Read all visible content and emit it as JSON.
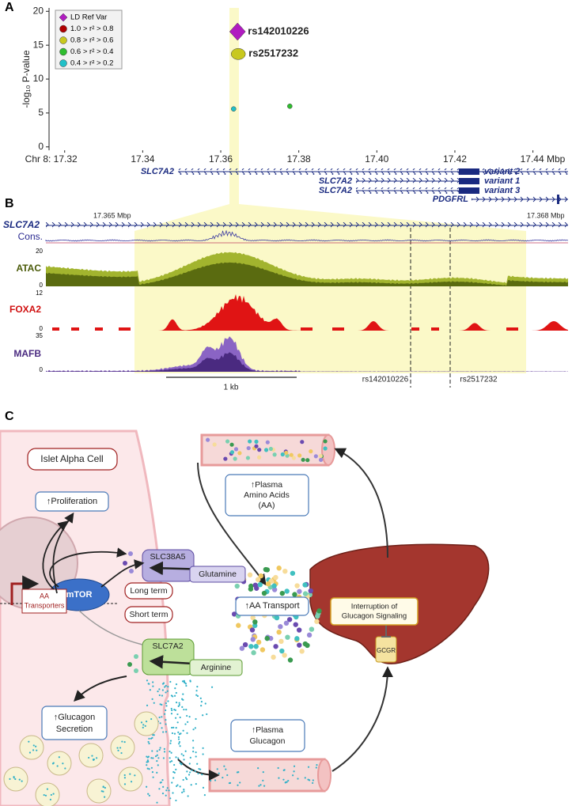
{
  "panel_labels": [
    "A",
    "B",
    "C"
  ],
  "chart_data": {
    "type": "scatter",
    "ylabel": "-log₁₀ P-value",
    "xlim": [
      17.316,
      17.449
    ],
    "ylim": [
      -0.5,
      20.5
    ],
    "xticks": [
      {
        "value": 17.32,
        "label": "Chr 8: 17.32"
      },
      17.34,
      17.36,
      17.38,
      {
        "value": 17.4,
        "label": "17.40"
      },
      17.42,
      {
        "value": 17.44,
        "label": "17.44 Mbp"
      }
    ],
    "yticks": [
      0,
      5,
      10,
      15,
      20
    ],
    "legend": "upper left",
    "series": [
      {
        "name": "LD Ref Var",
        "color": "#b01cc0",
        "marker": "diamond",
        "x": [
          17.3643
        ],
        "values": [
          17
        ],
        "point_labels": [
          "rs142010226"
        ]
      },
      {
        "name": "1.0 > r² > 0.8",
        "color": "#b00000",
        "marker": "circle",
        "x": [],
        "values": []
      },
      {
        "name": "0.8 > r² > 0.6",
        "color": "#c8c81e",
        "marker": "circle",
        "x": [
          17.3645
        ],
        "values": [
          13.7
        ],
        "point_labels": [
          "rs2517232"
        ]
      },
      {
        "name": "0.6 > r² > 0.4",
        "color": "#2ebd2e",
        "marker": "circle",
        "x": [
          17.3777
        ],
        "values": [
          6
        ]
      },
      {
        "name": "0.4 > r² > 0.2",
        "color": "#20c0c8",
        "marker": "circle",
        "x": [
          17.3633
        ],
        "values": [
          5.6
        ]
      }
    ]
  },
  "genes_a": [
    {
      "name": "SLC7A2",
      "variant": "variant 2"
    },
    {
      "name": "SLC7A2",
      "variant": "variant 1"
    },
    {
      "name": "SLC7A2",
      "variant": "variant 3"
    },
    {
      "name": "PDGFRL"
    }
  ],
  "panel_b": {
    "range_start": "17.365 Mbp",
    "range_end": "17.368 Mbp",
    "gene": "SLC7A2",
    "cons": "Cons.",
    "tracks": [
      {
        "name": "ATAC",
        "max": "20",
        "min": "0"
      },
      {
        "name": "FOXA2",
        "max": "12",
        "min": "0"
      },
      {
        "name": "MAFB",
        "max": "35",
        "min": "0"
      }
    ],
    "scale": "1 kb",
    "snps": [
      "rs142010226",
      "rs2517232"
    ]
  },
  "panel_c": {
    "cell": "Islet Alpha Cell",
    "proliferation": "↑Proliferation",
    "slc38a5": "SLC38A5",
    "glutamine": "Glutamine",
    "aa_transporters": [
      "AA",
      "Transporters"
    ],
    "mtor": "mTOR",
    "long_term": "Long term",
    "short_term": "Short term",
    "slc7a2": "SLC7A2",
    "arginine": "Arginine",
    "glucagon_secretion": [
      "↑Glucagon",
      "Secretion"
    ],
    "plasma_aa": [
      "↑Plasma",
      "Amino Acids",
      "(AA)"
    ],
    "aa_transport": "↑AA Transport",
    "interruption": [
      "Interruption of",
      "Glucagon Signaling"
    ],
    "gcgr": "GCGR",
    "plasma_glucagon": [
      "↑Plasma",
      "Glucagon"
    ]
  }
}
